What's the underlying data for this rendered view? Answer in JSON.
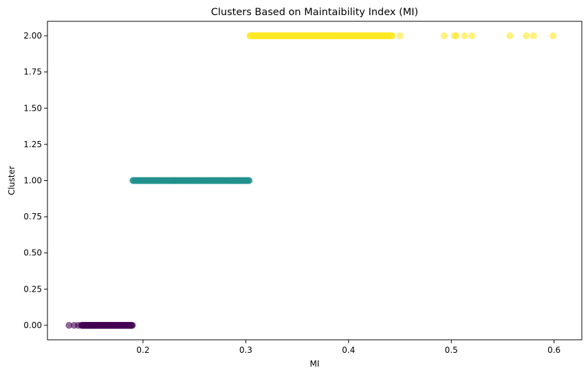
{
  "chart_data": {
    "type": "scatter",
    "title": "Clusters Based on Maintaibility Index (MI)",
    "xlabel": "MI",
    "ylabel": "Cluster",
    "xlim": [
      0.107,
      0.627
    ],
    "ylim": [
      -0.1,
      2.1
    ],
    "x_ticks": [
      0.2,
      0.3,
      0.4,
      0.5,
      0.6
    ],
    "x_tick_labels": [
      "0.2",
      "0.3",
      "0.4",
      "0.5",
      "0.6"
    ],
    "y_ticks": [
      0.0,
      0.25,
      0.5,
      0.75,
      1.0,
      1.25,
      1.5,
      1.75,
      2.0
    ],
    "y_tick_labels": [
      "0.00",
      "0.25",
      "0.50",
      "0.75",
      "1.00",
      "1.25",
      "1.50",
      "1.75",
      "2.00"
    ],
    "grid": false,
    "colors": {
      "cluster_0": "#440154",
      "cluster_1": "#21918c",
      "cluster_2": "#fde725"
    },
    "series": [
      {
        "cluster": 0,
        "color": "#440154",
        "y": 0,
        "x_range": [
          0.14,
          0.19
        ],
        "x_outliers": [
          0.128,
          0.133,
          0.137
        ]
      },
      {
        "cluster": 1,
        "color": "#21918c",
        "y": 1,
        "x_range": [
          0.19,
          0.304
        ]
      },
      {
        "cluster": 2,
        "color": "#fde725",
        "y": 2,
        "x_range": [
          0.304,
          0.443
        ],
        "x_outliers": [
          0.45,
          0.493,
          0.503,
          0.505,
          0.513,
          0.52,
          0.557,
          0.573,
          0.58,
          0.599
        ]
      }
    ]
  }
}
